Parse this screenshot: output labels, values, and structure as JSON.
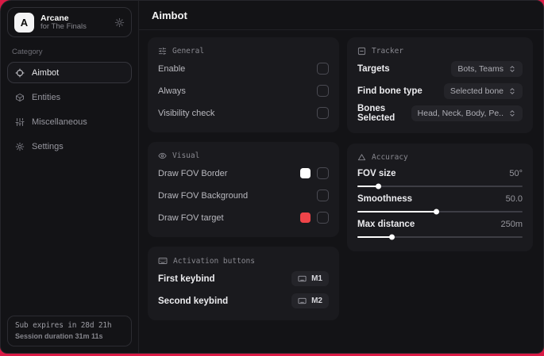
{
  "app": {
    "logo_letter": "A",
    "name": "Arcane",
    "subtitle": "for The Finals"
  },
  "sidebar": {
    "category_label": "Category",
    "items": [
      {
        "label": "Aimbot",
        "icon": "crosshair-icon",
        "active": true
      },
      {
        "label": "Entities",
        "icon": "cube-icon",
        "active": false
      },
      {
        "label": "Miscellaneous",
        "icon": "sliders-vertical-icon",
        "active": false
      },
      {
        "label": "Settings",
        "icon": "gear-icon",
        "active": false
      }
    ],
    "status": {
      "sub_line": "Sub expires in 28d 21h",
      "session_line": "Session duration 31m 11s"
    }
  },
  "header": {
    "title": "Aimbot"
  },
  "cards": {
    "general": {
      "title": "General",
      "icon": "sliders-horizontal-icon",
      "rows": [
        {
          "label": "Enable",
          "checked": false
        },
        {
          "label": "Always",
          "checked": false
        },
        {
          "label": "Visibility check",
          "checked": false
        }
      ]
    },
    "visual": {
      "title": "Visual",
      "icon": "eye-icon",
      "rows": [
        {
          "label": "Draw FOV Border",
          "swatch": "#ffffff",
          "checked": false
        },
        {
          "label": "Draw FOV Background",
          "checked": false
        },
        {
          "label": "Draw FOV target",
          "swatch": "#ef4449",
          "checked": false
        }
      ]
    },
    "activation": {
      "title": "Activation buttons",
      "icon": "keyboard-icon",
      "rows": [
        {
          "label": "First keybind",
          "key": "M1"
        },
        {
          "label": "Second keybind",
          "key": "M2"
        }
      ]
    },
    "tracker": {
      "title": "Tracker",
      "icon": "square-minus-icon",
      "rows": [
        {
          "label": "Targets",
          "value": "Bots, Teams"
        },
        {
          "label": "Find bone type",
          "value": "Selected bone"
        },
        {
          "label": "Bones Selected",
          "value": "Head, Neck, Body, Pe.."
        }
      ]
    },
    "accuracy": {
      "title": "Accuracy",
      "icon": "triangle-icon",
      "rows": [
        {
          "label": "FOV size",
          "value": "50°",
          "percent": 13
        },
        {
          "label": "Smoothness",
          "value": "50.0",
          "percent": 48
        },
        {
          "label": "Max distance",
          "value": "250m",
          "percent": 21
        }
      ]
    }
  },
  "icons": {
    "crosshair-icon": "circle with cross ticks",
    "cube-icon": "3d box outline",
    "sliders-vertical-icon": "vertical sliders",
    "gear-icon": "settings cog",
    "sliders-horizontal-icon": "horizontal sliders",
    "eye-icon": "eye",
    "keyboard-icon": "keyboard",
    "square-minus-icon": "square with minus",
    "triangle-icon": "triangle outline",
    "chevrons-up-down-icon": "stacked chevrons"
  },
  "colors": {
    "edge_accent": "#d91a45",
    "window_bg": "#131316",
    "card_bg": "#1a1a1e",
    "swatch_red": "#ef4449",
    "swatch_white": "#ffffff"
  }
}
